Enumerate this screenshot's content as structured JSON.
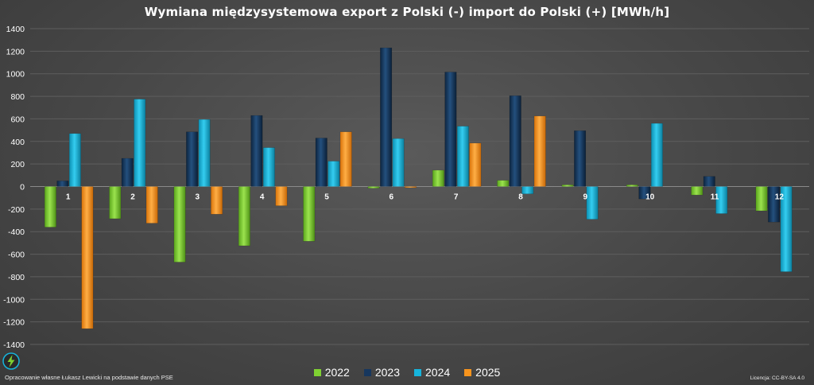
{
  "chart_data": {
    "type": "bar",
    "title": "Wymiana międzysystemowa export z Polski (-) import do Polski (+) [MWh/h]",
    "categories": [
      "1",
      "2",
      "3",
      "4",
      "5",
      "6",
      "7",
      "8",
      "9",
      "10",
      "11",
      "12"
    ],
    "ylim": [
      -1400,
      1400
    ],
    "yticks": [
      1400,
      1200,
      1000,
      800,
      600,
      400,
      200,
      0,
      -200,
      -400,
      -600,
      -800,
      -1000,
      -1200,
      -1400
    ],
    "grid": true,
    "legend": "bottom",
    "series": [
      {
        "name": "2022",
        "color": "#7fd132",
        "values": [
          -360,
          -285,
          -670,
          -525,
          -485,
          -15,
          145,
          55,
          15,
          15,
          -75,
          -215
        ]
      },
      {
        "name": "2023",
        "color": "#17375e",
        "values": [
          50,
          250,
          485,
          630,
          430,
          1230,
          1015,
          805,
          495,
          -110,
          90,
          -315
        ]
      },
      {
        "name": "2024",
        "color": "#16b4dc",
        "values": [
          470,
          775,
          595,
          345,
          225,
          425,
          535,
          -65,
          -290,
          560,
          -240,
          -755
        ]
      },
      {
        "name": "2025",
        "color": "#f7941d",
        "values": [
          -1260,
          -325,
          -245,
          -170,
          485,
          -10,
          385,
          625,
          null,
          null,
          null,
          null
        ]
      }
    ]
  },
  "footer": {
    "source": "Opracowanie własne Łukasz Lewicki na podstawie danych PSE",
    "license": "Licencja: CC-BY-SA 4.0"
  },
  "logo": {
    "icon": "lightning-logo-icon"
  }
}
